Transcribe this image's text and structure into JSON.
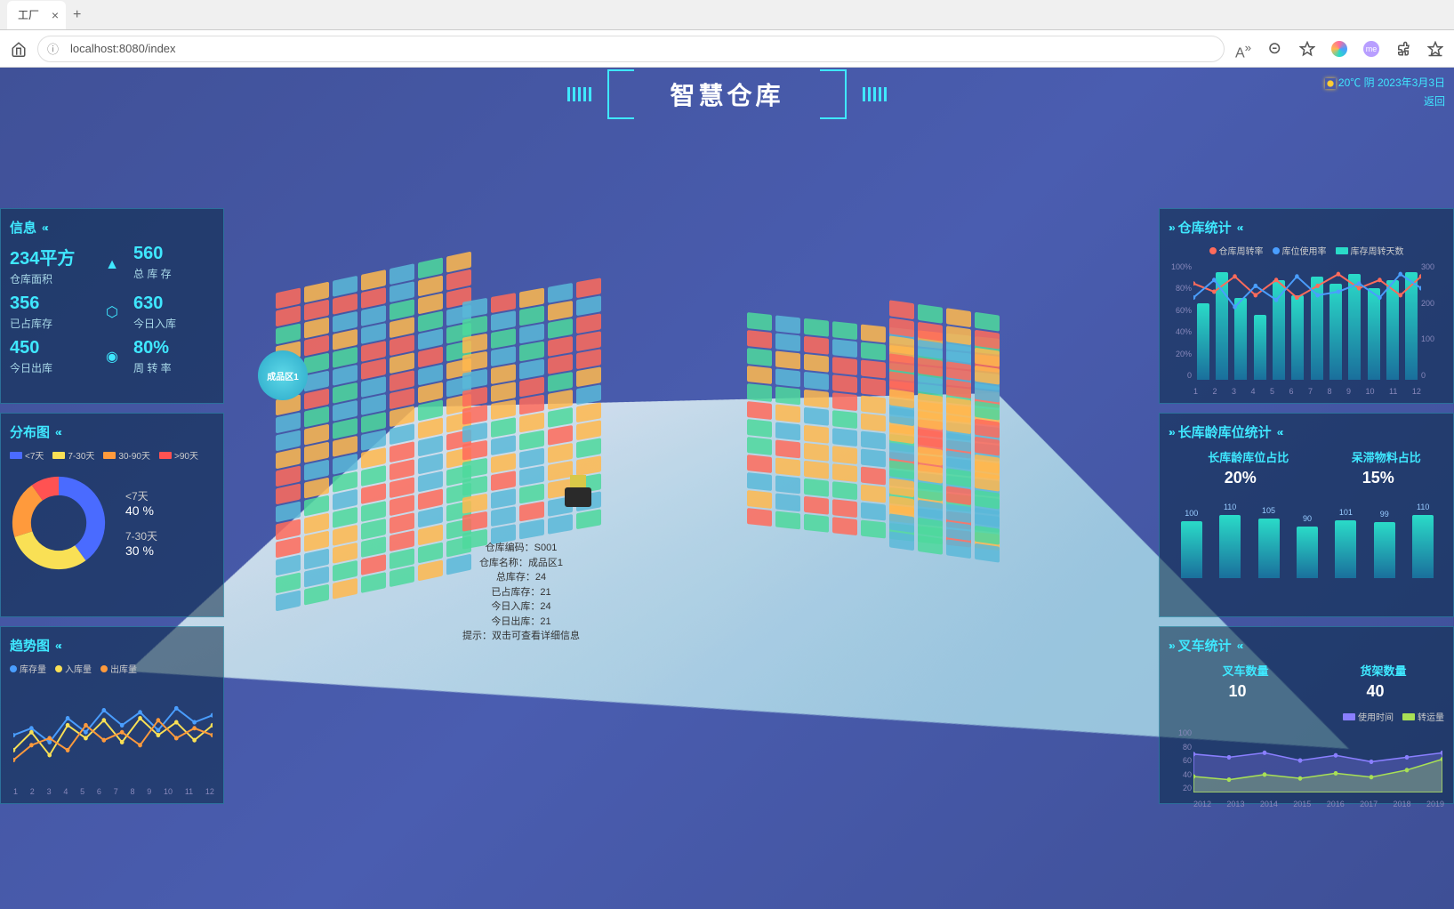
{
  "browser": {
    "tab_title": "工厂",
    "url": "localhost:8080/index"
  },
  "header": {
    "title": "智慧仓库",
    "temp": "20℃",
    "weather": "阴",
    "date": "2023年3月3日",
    "back": "返回"
  },
  "colors": {
    "accent": "#3fe8ff",
    "panel_bg": "rgba(10,40,70,0.55)",
    "bar_gradient_top": "#2adbc8",
    "bar_gradient_bottom": "#1a6f9c"
  },
  "info_panel": {
    "title": "信息",
    "stats": [
      {
        "value": "234平方",
        "label": "仓库面积"
      },
      {
        "value": "560",
        "label": "总 库 存"
      },
      {
        "value": "356",
        "label": "已占库存"
      },
      {
        "value": "630",
        "label": "今日入库"
      },
      {
        "value": "450",
        "label": "今日出库"
      },
      {
        "value": "80%",
        "label": "周 转 率"
      }
    ]
  },
  "scene": {
    "zone_label": "成品区1",
    "tooltip": {
      "code_lbl": "仓库编码：",
      "code": "S001",
      "name_lbl": "仓库名称：",
      "name": "成品区1",
      "total_lbl": "总库存：",
      "total": "24",
      "used_lbl": "已占库存：",
      "used": "21",
      "in_lbl": "今日入库：",
      "in": "24",
      "out_lbl": "今日出库：",
      "out": "21",
      "hint": "提示：双击可查看详细信息"
    },
    "box_colors": [
      "#ff6b5b",
      "#4dd89c",
      "#5bb8d8",
      "#ffb84d"
    ]
  },
  "distribution": {
    "title": "分布图",
    "legend": [
      {
        "label": "<7天",
        "color": "#4a6bff"
      },
      {
        "label": "7-30天",
        "color": "#f9e055"
      },
      {
        "label": "30-90天",
        "color": "#ff9a3c"
      },
      {
        "label": ">90天",
        "color": "#ff5252"
      }
    ],
    "slices": [
      {
        "label": "<7天",
        "pct": 40,
        "color": "#4a6bff"
      },
      {
        "label": "7-30天",
        "pct": 30,
        "color": "#f9e055"
      },
      {
        "label": "30-90天",
        "pct": 20,
        "color": "#ff9a3c"
      },
      {
        "label": ">90天",
        "pct": 10,
        "color": "#ff5252"
      }
    ],
    "side_labels": [
      {
        "name": "<7天",
        "pct": "40 %"
      },
      {
        "name": "7-30天",
        "pct": "30 %"
      }
    ]
  },
  "trend": {
    "title": "趋势图",
    "legend": [
      {
        "label": "库存量",
        "color": "#4a9eff"
      },
      {
        "label": "入库量",
        "color": "#f9e055"
      },
      {
        "label": "出库量",
        "color": "#ff9a3c"
      }
    ],
    "x": [
      "1",
      "2",
      "3",
      "4",
      "5",
      "6",
      "7",
      "8",
      "9",
      "10",
      "11",
      "12"
    ],
    "series": {
      "stock": [
        45,
        52,
        38,
        62,
        48,
        70,
        55,
        68,
        50,
        72,
        58,
        65
      ],
      "inflow": [
        30,
        48,
        25,
        55,
        42,
        60,
        38,
        62,
        45,
        58,
        40,
        55
      ],
      "outflow": [
        20,
        35,
        42,
        30,
        55,
        40,
        48,
        35,
        60,
        42,
        52,
        45
      ]
    },
    "ylim": [
      0,
      100
    ]
  },
  "warehouse_stats": {
    "title": "仓库统计",
    "legend": [
      {
        "label": "仓库周转率",
        "color": "#ff6b5b",
        "type": "dot"
      },
      {
        "label": "库位使用率",
        "color": "#4a9eff",
        "type": "dot"
      },
      {
        "label": "库存周转天数",
        "color": "#2adbc8",
        "type": "bar"
      }
    ],
    "y_ticks": [
      "100%",
      "80%",
      "60%",
      "40%",
      "20%",
      "0"
    ],
    "y2_ticks": [
      "300",
      "200",
      "100",
      "0"
    ],
    "x": [
      "1",
      "2",
      "3",
      "4",
      "5",
      "6",
      "7",
      "8",
      "9",
      "10",
      "11",
      "12"
    ],
    "bars": [
      65,
      92,
      70,
      55,
      85,
      72,
      88,
      82,
      90,
      78,
      85,
      92
    ],
    "line1": [
      82,
      75,
      88,
      72,
      85,
      70,
      80,
      90,
      78,
      85,
      72,
      88
    ],
    "line2": [
      70,
      85,
      62,
      80,
      68,
      88,
      72,
      75,
      82,
      70,
      90,
      78
    ],
    "ylim": [
      0,
      100
    ]
  },
  "long_stock": {
    "title": "长库龄库位统计",
    "sub1": "长库龄库位占比",
    "v1": "20%",
    "sub2": "呆滞物料占比",
    "v2": "15%",
    "bars": [
      {
        "label": "100",
        "h": 70
      },
      {
        "label": "110",
        "h": 77
      },
      {
        "label": "105",
        "h": 73
      },
      {
        "label": "90",
        "h": 63
      },
      {
        "label": "101",
        "h": 71
      },
      {
        "label": "99",
        "h": 69
      },
      {
        "label": "110",
        "h": 77
      }
    ],
    "bar_color_top": "#2adbc8",
    "bar_color_bottom": "#1a6f9c"
  },
  "forklift": {
    "title": "叉车统计",
    "sub1": "叉车数量",
    "v1": "10",
    "sub2": "货架数量",
    "v2": "40",
    "legend": [
      {
        "label": "使用时间",
        "color": "#8a7fff"
      },
      {
        "label": "转运量",
        "color": "#a8e055"
      }
    ],
    "y_ticks": [
      "100",
      "80",
      "60",
      "40",
      "20"
    ],
    "x": [
      "2012",
      "2013",
      "2014",
      "2015",
      "2016",
      "2017",
      "2018",
      "2019"
    ],
    "series1": [
      60,
      55,
      62,
      50,
      58,
      48,
      55,
      62
    ],
    "series2": [
      25,
      20,
      28,
      22,
      30,
      24,
      35,
      52
    ],
    "ylim": [
      0,
      100
    ]
  }
}
